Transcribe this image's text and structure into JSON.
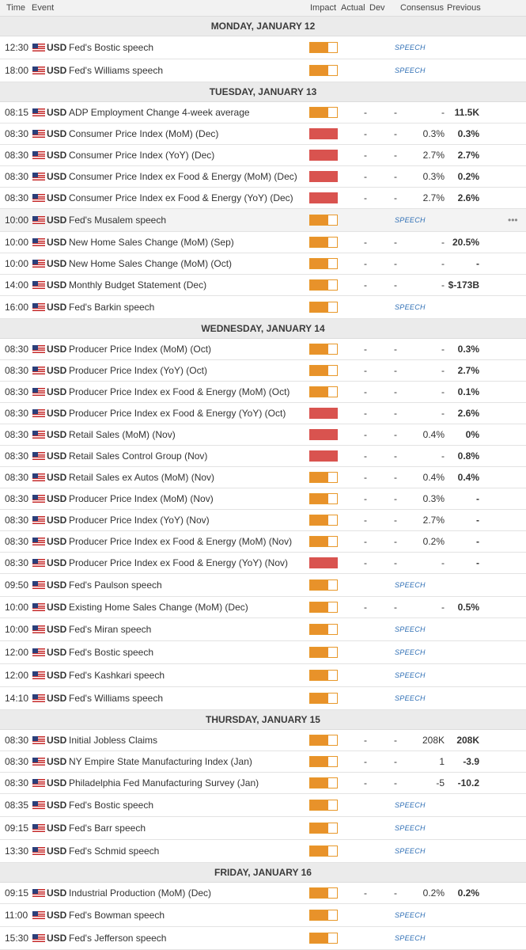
{
  "header": {
    "time": "Time",
    "event": "Event",
    "impact": "Impact",
    "actual": "Actual",
    "dev": "Dev",
    "consensus": "Consensus",
    "previous": "Previous"
  },
  "speech_label": "SPEECH",
  "more_icon": "•••",
  "colors": {
    "medium": "#e8922a",
    "high": "#d9534f",
    "speech": "#2f6fb5"
  },
  "days": [
    {
      "label": "MONDAY, JANUARY 12",
      "events": [
        {
          "time": "12:30",
          "currency": "USD",
          "event": "Fed's Bostic speech",
          "impact": "medium",
          "speech": true
        },
        {
          "time": "18:00",
          "currency": "USD",
          "event": "Fed's Williams speech",
          "impact": "medium",
          "speech": true
        }
      ]
    },
    {
      "label": "TUESDAY, JANUARY 13",
      "events": [
        {
          "time": "08:15",
          "currency": "USD",
          "event": "ADP Employment Change 4-week average",
          "impact": "medium",
          "actual": "-",
          "dev": "-",
          "consensus": "-",
          "previous": "11.5K"
        },
        {
          "time": "08:30",
          "currency": "USD",
          "event": "Consumer Price Index (MoM) (Dec)",
          "impact": "high",
          "actual": "-",
          "dev": "-",
          "consensus": "0.3%",
          "previous": "0.3%"
        },
        {
          "time": "08:30",
          "currency": "USD",
          "event": "Consumer Price Index (YoY) (Dec)",
          "impact": "high",
          "actual": "-",
          "dev": "-",
          "consensus": "2.7%",
          "previous": "2.7%"
        },
        {
          "time": "08:30",
          "currency": "USD",
          "event": "Consumer Price Index ex Food & Energy (MoM) (Dec)",
          "impact": "high",
          "actual": "-",
          "dev": "-",
          "consensus": "0.3%",
          "previous": "0.2%"
        },
        {
          "time": "08:30",
          "currency": "USD",
          "event": "Consumer Price Index ex Food & Energy (YoY) (Dec)",
          "impact": "high",
          "actual": "-",
          "dev": "-",
          "consensus": "2.7%",
          "previous": "2.6%"
        },
        {
          "time": "10:00",
          "currency": "USD",
          "event": "Fed's Musalem speech",
          "impact": "medium",
          "speech": true,
          "highlighted": true
        },
        {
          "time": "10:00",
          "currency": "USD",
          "event": "New Home Sales Change (MoM) (Sep)",
          "impact": "medium",
          "actual": "-",
          "dev": "-",
          "consensus": "-",
          "previous": "20.5%"
        },
        {
          "time": "10:00",
          "currency": "USD",
          "event": "New Home Sales Change (MoM) (Oct)",
          "impact": "medium",
          "actual": "-",
          "dev": "-",
          "consensus": "-",
          "previous": "-"
        },
        {
          "time": "14:00",
          "currency": "USD",
          "event": "Monthly Budget Statement (Dec)",
          "impact": "medium",
          "actual": "-",
          "dev": "-",
          "consensus": "-",
          "previous": "$-173B"
        },
        {
          "time": "16:00",
          "currency": "USD",
          "event": "Fed's Barkin speech",
          "impact": "medium",
          "speech": true
        }
      ]
    },
    {
      "label": "WEDNESDAY, JANUARY 14",
      "events": [
        {
          "time": "08:30",
          "currency": "USD",
          "event": "Producer Price Index (MoM) (Oct)",
          "impact": "medium",
          "actual": "-",
          "dev": "-",
          "consensus": "-",
          "previous": "0.3%"
        },
        {
          "time": "08:30",
          "currency": "USD",
          "event": "Producer Price Index (YoY) (Oct)",
          "impact": "medium",
          "actual": "-",
          "dev": "-",
          "consensus": "-",
          "previous": "2.7%"
        },
        {
          "time": "08:30",
          "currency": "USD",
          "event": "Producer Price Index ex Food & Energy (MoM) (Oct)",
          "impact": "medium",
          "actual": "-",
          "dev": "-",
          "consensus": "-",
          "previous": "0.1%"
        },
        {
          "time": "08:30",
          "currency": "USD",
          "event": "Producer Price Index ex Food & Energy (YoY) (Oct)",
          "impact": "high",
          "actual": "-",
          "dev": "-",
          "consensus": "-",
          "previous": "2.6%"
        },
        {
          "time": "08:30",
          "currency": "USD",
          "event": "Retail Sales (MoM) (Nov)",
          "impact": "high",
          "actual": "-",
          "dev": "-",
          "consensus": "0.4%",
          "previous": "0%"
        },
        {
          "time": "08:30",
          "currency": "USD",
          "event": "Retail Sales Control Group (Nov)",
          "impact": "high",
          "actual": "-",
          "dev": "-",
          "consensus": "-",
          "previous": "0.8%"
        },
        {
          "time": "08:30",
          "currency": "USD",
          "event": "Retail Sales ex Autos (MoM) (Nov)",
          "impact": "medium",
          "actual": "-",
          "dev": "-",
          "consensus": "0.4%",
          "previous": "0.4%"
        },
        {
          "time": "08:30",
          "currency": "USD",
          "event": "Producer Price Index (MoM) (Nov)",
          "impact": "medium",
          "actual": "-",
          "dev": "-",
          "consensus": "0.3%",
          "previous": "-"
        },
        {
          "time": "08:30",
          "currency": "USD",
          "event": "Producer Price Index (YoY) (Nov)",
          "impact": "medium",
          "actual": "-",
          "dev": "-",
          "consensus": "2.7%",
          "previous": "-"
        },
        {
          "time": "08:30",
          "currency": "USD",
          "event": "Producer Price Index ex Food & Energy (MoM) (Nov)",
          "impact": "medium",
          "actual": "-",
          "dev": "-",
          "consensus": "0.2%",
          "previous": "-"
        },
        {
          "time": "08:30",
          "currency": "USD",
          "event": "Producer Price Index ex Food & Energy (YoY) (Nov)",
          "impact": "high",
          "actual": "-",
          "dev": "-",
          "consensus": "-",
          "previous": "-"
        },
        {
          "time": "09:50",
          "currency": "USD",
          "event": "Fed's Paulson speech",
          "impact": "medium",
          "speech": true
        },
        {
          "time": "10:00",
          "currency": "USD",
          "event": "Existing Home Sales Change (MoM) (Dec)",
          "impact": "medium",
          "actual": "-",
          "dev": "-",
          "consensus": "-",
          "previous": "0.5%"
        },
        {
          "time": "10:00",
          "currency": "USD",
          "event": "Fed's Miran speech",
          "impact": "medium",
          "speech": true
        },
        {
          "time": "12:00",
          "currency": "USD",
          "event": "Fed's Bostic speech",
          "impact": "medium",
          "speech": true
        },
        {
          "time": "12:00",
          "currency": "USD",
          "event": "Fed's Kashkari speech",
          "impact": "medium",
          "speech": true
        },
        {
          "time": "14:10",
          "currency": "USD",
          "event": "Fed's Williams speech",
          "impact": "medium",
          "speech": true
        }
      ]
    },
    {
      "label": "THURSDAY, JANUARY 15",
      "events": [
        {
          "time": "08:30",
          "currency": "USD",
          "event": "Initial Jobless Claims",
          "impact": "medium",
          "actual": "-",
          "dev": "-",
          "consensus": "208K",
          "previous": "208K"
        },
        {
          "time": "08:30",
          "currency": "USD",
          "event": "NY Empire State Manufacturing Index (Jan)",
          "impact": "medium",
          "actual": "-",
          "dev": "-",
          "consensus": "1",
          "previous": "-3.9"
        },
        {
          "time": "08:30",
          "currency": "USD",
          "event": "Philadelphia Fed Manufacturing Survey (Jan)",
          "impact": "medium",
          "actual": "-",
          "dev": "-",
          "consensus": "-5",
          "previous": "-10.2"
        },
        {
          "time": "08:35",
          "currency": "USD",
          "event": "Fed's Bostic speech",
          "impact": "medium",
          "speech": true
        },
        {
          "time": "09:15",
          "currency": "USD",
          "event": "Fed's Barr speech",
          "impact": "medium",
          "speech": true
        },
        {
          "time": "13:30",
          "currency": "USD",
          "event": "Fed's Schmid speech",
          "impact": "medium",
          "speech": true
        }
      ]
    },
    {
      "label": "FRIDAY, JANUARY 16",
      "events": [
        {
          "time": "09:15",
          "currency": "USD",
          "event": "Industrial Production (MoM) (Dec)",
          "impact": "medium",
          "actual": "-",
          "dev": "-",
          "consensus": "0.2%",
          "previous": "0.2%"
        },
        {
          "time": "11:00",
          "currency": "USD",
          "event": "Fed's Bowman speech",
          "impact": "medium",
          "speech": true
        },
        {
          "time": "15:30",
          "currency": "USD",
          "event": "Fed's Jefferson speech",
          "impact": "medium",
          "speech": true
        }
      ]
    }
  ]
}
